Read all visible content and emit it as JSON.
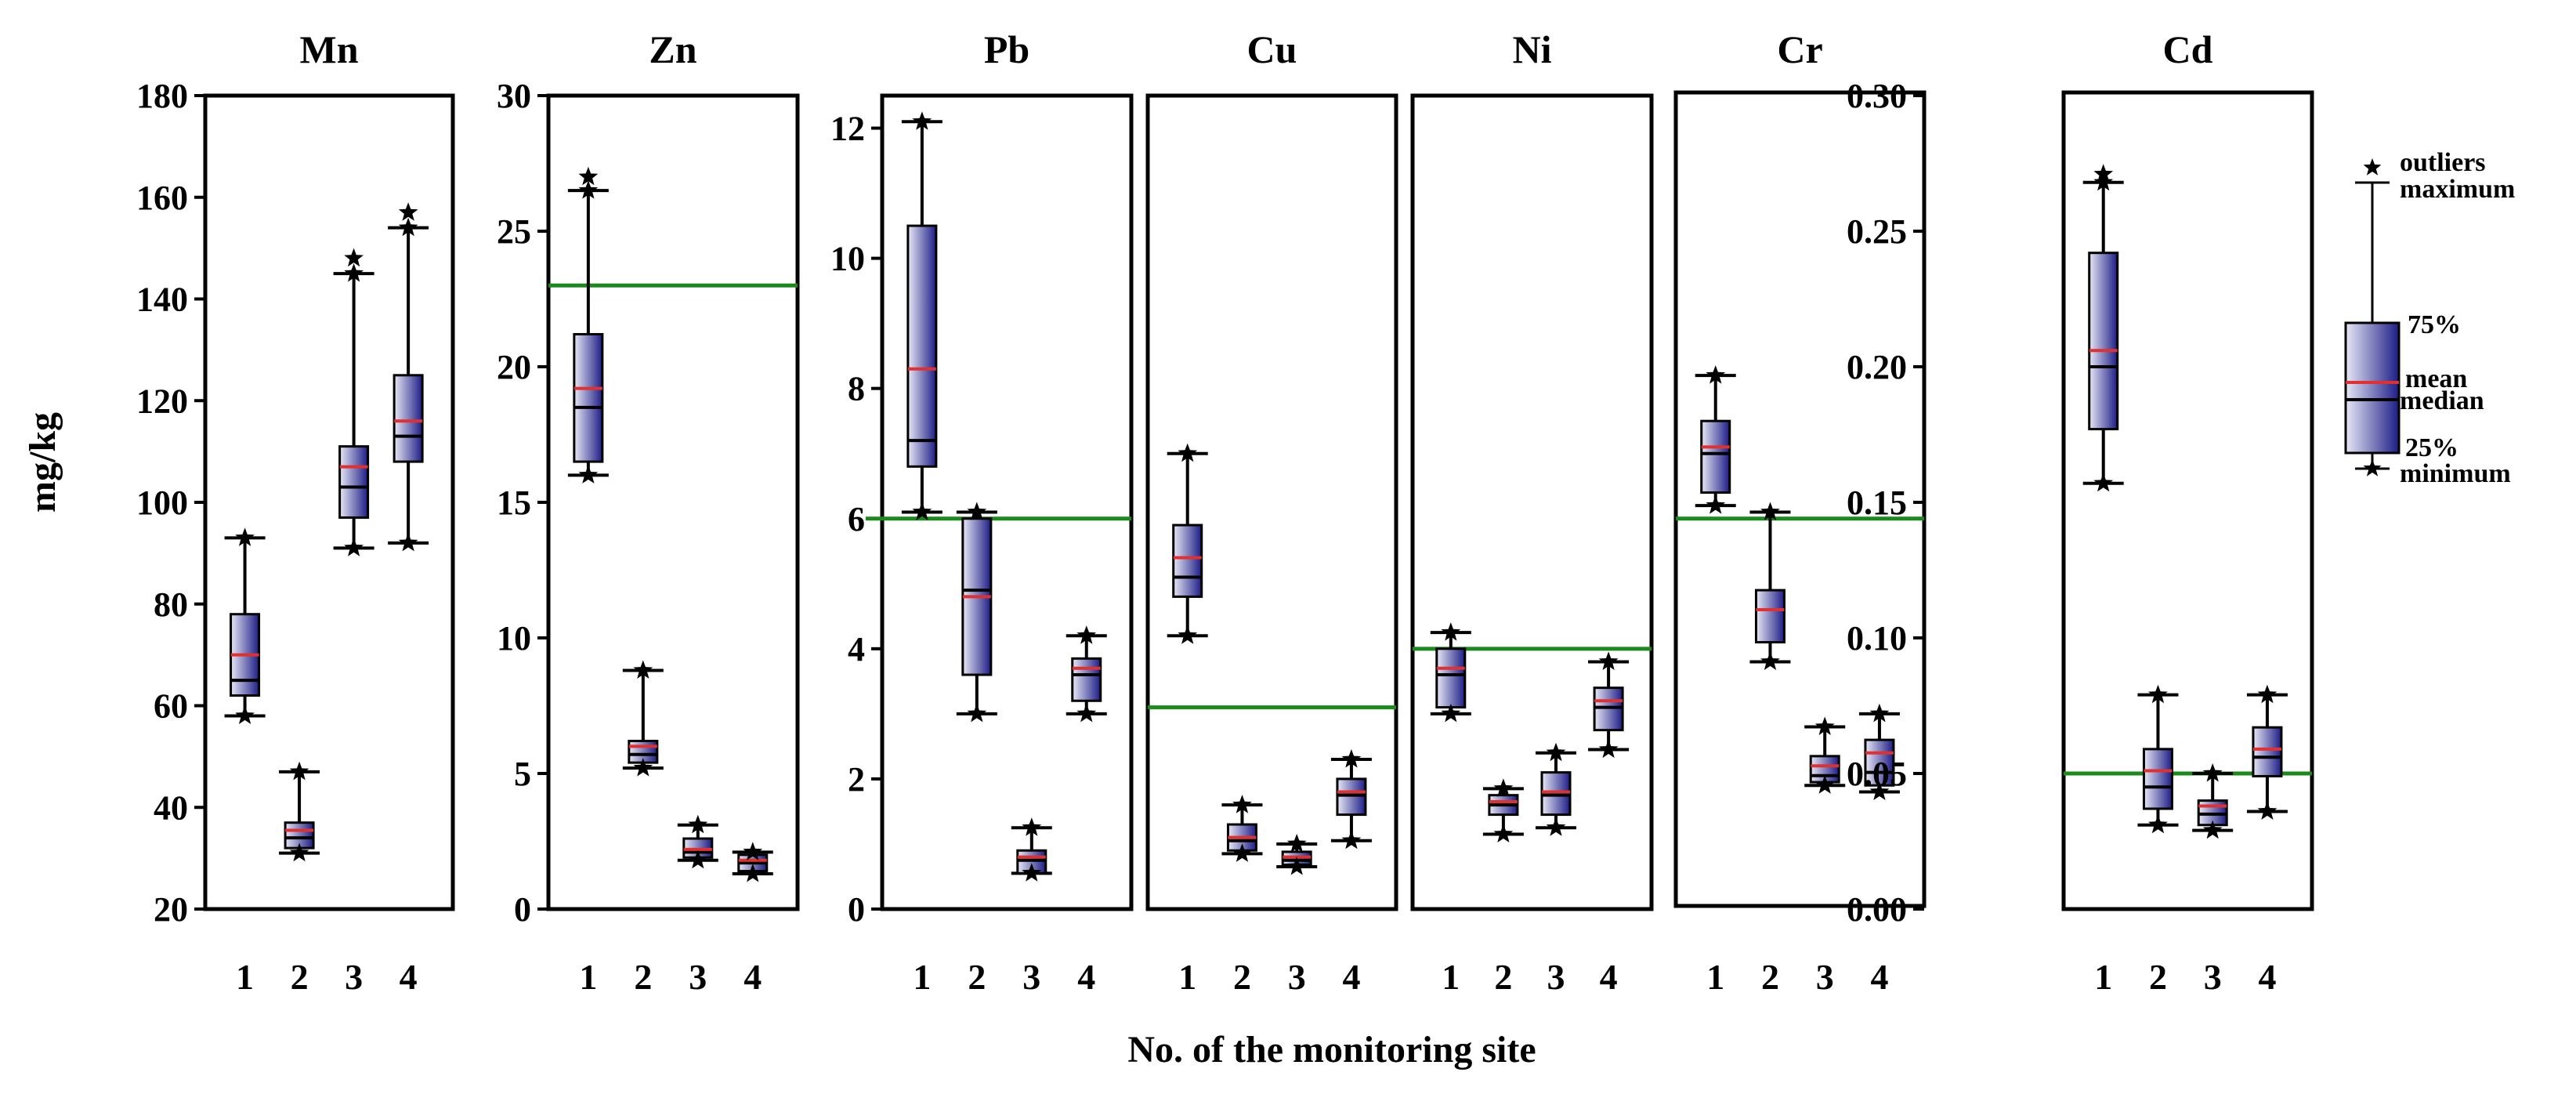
{
  "chart_data": {
    "type": "box",
    "xlabel": "No. of the monitoring site",
    "ylabel": "mg/kg",
    "categories": [
      "1",
      "2",
      "3",
      "4"
    ],
    "colors": {
      "box_dark": "#1c1c86",
      "box_light": "#e8e8f6",
      "mean_line": "#e03030",
      "threshold_line": "#1a8a1a",
      "frame": "#000000"
    },
    "panels": [
      {
        "metal": "Mn",
        "ylim": [
          20,
          180
        ],
        "yticks": [
          "20",
          "40",
          "60",
          "80",
          "100",
          "120",
          "140",
          "160",
          "180"
        ],
        "threshold": null,
        "boxes": [
          {
            "site": "1",
            "min": 58,
            "q1": 62,
            "median": 65,
            "mean": 70,
            "q3": 78,
            "max": 93,
            "outliers": []
          },
          {
            "site": "2",
            "min": 31,
            "q1": 32,
            "median": 34,
            "mean": 35.5,
            "q3": 37,
            "max": 47,
            "outliers": []
          },
          {
            "site": "3",
            "min": 91,
            "q1": 97,
            "median": 103,
            "mean": 107,
            "q3": 111,
            "max": 145,
            "outliers": [
              148
            ]
          },
          {
            "site": "4",
            "min": 92,
            "q1": 108,
            "median": 113,
            "mean": 116,
            "q3": 125,
            "max": 154,
            "outliers": [
              157
            ]
          }
        ]
      },
      {
        "metal": "Zn",
        "ylim": [
          0,
          30
        ],
        "yticks": [
          "0",
          "5",
          "10",
          "15",
          "20",
          "25",
          "30"
        ],
        "threshold": 23,
        "boxes": [
          {
            "site": "1",
            "min": 16,
            "q1": 16.5,
            "median": 18.5,
            "mean": 19.2,
            "q3": 21.2,
            "max": 26.5,
            "outliers": [
              27
            ]
          },
          {
            "site": "2",
            "min": 5.2,
            "q1": 5.4,
            "median": 5.7,
            "mean": 6,
            "q3": 6.2,
            "max": 8.8,
            "outliers": []
          },
          {
            "site": "3",
            "min": 1.8,
            "q1": 1.9,
            "median": 2.1,
            "mean": 2.2,
            "q3": 2.6,
            "max": 3.1,
            "outliers": []
          },
          {
            "site": "4",
            "min": 1.3,
            "q1": 1.4,
            "median": 1.7,
            "mean": 1.8,
            "q3": 2,
            "max": 2.1,
            "outliers": []
          }
        ]
      },
      {
        "metal": "Pb",
        "ylim": [
          0,
          12.5
        ],
        "yticks": [
          "0",
          "2",
          "4",
          "6",
          "8",
          "10",
          "12"
        ],
        "threshold": 6,
        "boxes": [
          {
            "site": "1",
            "min": 6.1,
            "q1": 6.8,
            "median": 7.2,
            "mean": 8.3,
            "q3": 10.5,
            "max": 12.1,
            "outliers": []
          },
          {
            "site": "2",
            "min": 3,
            "q1": 3.6,
            "median": 4.9,
            "mean": 4.8,
            "q3": 6,
            "max": 6.1,
            "outliers": []
          },
          {
            "site": "3",
            "min": 0.55,
            "q1": 0.55,
            "median": 0.75,
            "mean": 0.8,
            "q3": 0.9,
            "max": 1.25,
            "outliers": []
          },
          {
            "site": "4",
            "min": 3,
            "q1": 3.2,
            "median": 3.6,
            "mean": 3.7,
            "q3": 3.85,
            "max": 4.2,
            "outliers": []
          }
        ]
      },
      {
        "metal": "Cu",
        "ylim": [
          0,
          12.5
        ],
        "yticks": [],
        "threshold": 3.1,
        "boxes": [
          {
            "site": "1",
            "min": 4.2,
            "q1": 4.8,
            "median": 5.1,
            "mean": 5.4,
            "q3": 5.9,
            "max": 7,
            "outliers": []
          },
          {
            "site": "2",
            "min": 0.85,
            "q1": 0.9,
            "median": 1.05,
            "mean": 1.1,
            "q3": 1.3,
            "max": 1.6,
            "outliers": []
          },
          {
            "site": "3",
            "min": 0.65,
            "q1": 0.68,
            "median": 0.75,
            "mean": 0.8,
            "q3": 0.88,
            "max": 1,
            "outliers": []
          },
          {
            "site": "4",
            "min": 1.05,
            "q1": 1.45,
            "median": 1.75,
            "mean": 1.8,
            "q3": 2,
            "max": 2.3,
            "outliers": []
          }
        ]
      },
      {
        "metal": "Ni",
        "ylim": [
          0,
          12.5
        ],
        "yticks": [],
        "threshold": 4,
        "boxes": [
          {
            "site": "1",
            "min": 3,
            "q1": 3.1,
            "median": 3.6,
            "mean": 3.7,
            "q3": 4,
            "max": 4.25,
            "outliers": []
          },
          {
            "site": "2",
            "min": 1.15,
            "q1": 1.45,
            "median": 1.6,
            "mean": 1.65,
            "q3": 1.75,
            "max": 1.85,
            "outliers": []
          },
          {
            "site": "3",
            "min": 1.25,
            "q1": 1.45,
            "median": 1.75,
            "mean": 1.8,
            "q3": 2.1,
            "max": 2.4,
            "outliers": []
          },
          {
            "site": "4",
            "min": 2.45,
            "q1": 2.75,
            "median": 3.1,
            "mean": 3.2,
            "q3": 3.4,
            "max": 3.8,
            "outliers": []
          }
        ]
      },
      {
        "metal": "Cr",
        "ylim": [
          0,
          12.5
        ],
        "yticks": [],
        "threshold": 6,
        "boxes": [
          {
            "site": "1",
            "min": 6.2,
            "q1": 6.4,
            "median": 7,
            "mean": 7.1,
            "q3": 7.5,
            "max": 8.2,
            "outliers": []
          },
          {
            "site": "2",
            "min": 3.8,
            "q1": 4.1,
            "median": 4.6,
            "mean": 4.6,
            "q3": 4.9,
            "max": 6.1,
            "outliers": []
          },
          {
            "site": "3",
            "min": 1.9,
            "q1": 1.95,
            "median": 2.05,
            "mean": 2.2,
            "q3": 2.35,
            "max": 2.8,
            "outliers": []
          },
          {
            "site": "4",
            "min": 1.8,
            "q1": 1.9,
            "median": 2.1,
            "mean": 2.4,
            "q3": 2.6,
            "max": 3,
            "outliers": []
          }
        ]
      },
      {
        "metal": "Cd",
        "ylim": [
          0,
          0.3
        ],
        "yticks": [
          "0.00",
          "0.05",
          "0.10",
          "0.15",
          "0.20",
          "0.25",
          "0.30"
        ],
        "threshold": 0.05,
        "boxes": [
          {
            "site": "1",
            "min": 0.157,
            "q1": 0.177,
            "median": 0.2,
            "mean": 0.206,
            "q3": 0.242,
            "max": 0.268,
            "outliers": [
              0.271
            ]
          },
          {
            "site": "2",
            "min": 0.031,
            "q1": 0.037,
            "median": 0.045,
            "mean": 0.051,
            "q3": 0.059,
            "max": 0.079,
            "outliers": []
          },
          {
            "site": "3",
            "min": 0.029,
            "q1": 0.031,
            "median": 0.035,
            "mean": 0.038,
            "q3": 0.04,
            "max": 0.05,
            "outliers": []
          },
          {
            "site": "4",
            "min": 0.036,
            "q1": 0.049,
            "median": 0.056,
            "mean": 0.059,
            "q3": 0.067,
            "max": 0.079,
            "outliers": []
          }
        ]
      }
    ],
    "legend": {
      "outliers": "outliers",
      "maximum": "maximum",
      "q3": "75%",
      "mean": "mean",
      "median": "median",
      "q1": "25%",
      "minimum": "minimum"
    }
  }
}
